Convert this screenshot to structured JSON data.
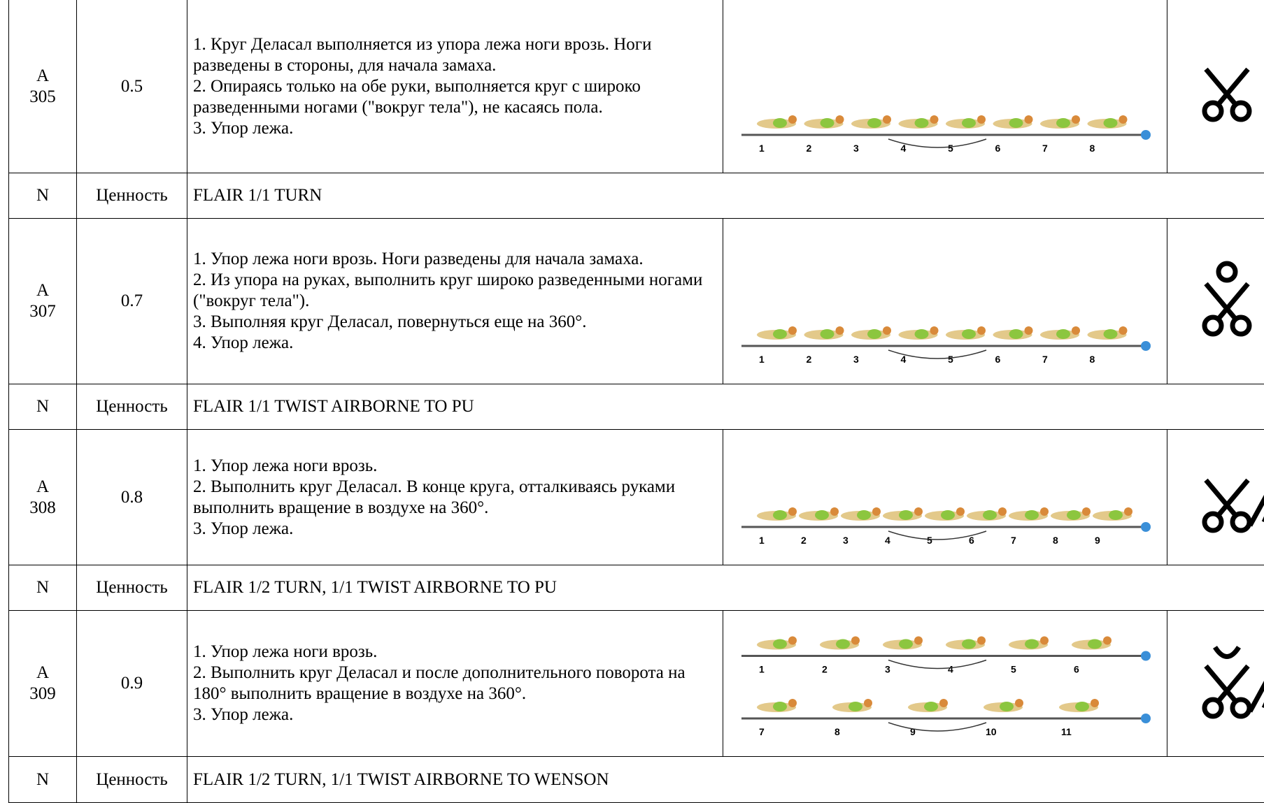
{
  "elements": [
    {
      "group": "A",
      "number": "305",
      "value": "0.5",
      "description": [
        "1. Круг Деласал выполняется из упора лежа ноги врозь. Ноги разведены в стороны, для начала замаха.",
        "2. Опираясь только на обе руки, выполняется круг с широко разведенными ногами (\"вокруг тела\"), не касаясь пола.",
        "3. Упор лежа."
      ],
      "steps": [
        [
          "1",
          "2",
          "3",
          "4",
          "5",
          "6",
          "7",
          "8"
        ]
      ],
      "summary": {
        "n": "N",
        "value_label": "Ценность",
        "name": "FLAIR 1/1 TURN"
      }
    },
    {
      "group": "A",
      "number": "307",
      "value": "0.7",
      "description": [
        "1. Упор лежа ноги врозь. Ноги разведены для начала замаха.",
        "2. Из упора на руках, выполнить круг широко разведенными ногами (\"вокруг тела\").",
        "3. Выполняя круг Деласал, повернуться еще на 360°.",
        "4. Упор лежа."
      ],
      "steps": [
        [
          "1",
          "2",
          "3",
          "4",
          "5",
          "6",
          "7",
          "8"
        ]
      ],
      "summary": {
        "n": "N",
        "value_label": "Ценность",
        "name": "FLAIR 1/1 TWIST AIRBORNE TO PU"
      }
    },
    {
      "group": "A",
      "number": "308",
      "value": "0.8",
      "description": [
        "1. Упор лежа ноги врозь.",
        "2. Выполнить круг Деласал. В конце круга, отталкиваясь руками выполнить вращение в воздухе на 360°.",
        "3. Упор лежа."
      ],
      "steps": [
        [
          "1",
          "2",
          "3",
          "4",
          "5",
          "6",
          "7",
          "8",
          "9"
        ]
      ],
      "summary": {
        "n": "N",
        "value_label": "Ценность",
        "name": "FLAIR 1/2 TURN, 1/1 TWIST AIRBORNE TO PU"
      }
    },
    {
      "group": "A",
      "number": "309",
      "value": "0.9",
      "description": [
        "1. Упор лежа ноги врозь.",
        "2. Выполнить круг Деласал и после дополнительного поворота на 180° выполнить вращение в воздухе на 360°.",
        "3. Упор лежа."
      ],
      "steps": [
        [
          "1",
          "2",
          "3",
          "4",
          "5",
          "6"
        ],
        [
          "7",
          "8",
          "9",
          "10",
          "11"
        ]
      ],
      "summary": {
        "n": "N",
        "value_label": "Ценность",
        "name": "FLAIR 1/2 TURN, 1/1 TWIST AIRBORNE TO WENSON"
      }
    }
  ]
}
